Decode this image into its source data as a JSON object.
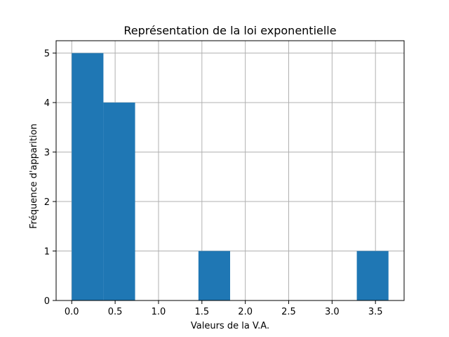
{
  "chart_data": {
    "type": "bar",
    "title": "Représentation de la loi exponentielle",
    "xlabel": "Valeurs de la V.A.",
    "ylabel": "Fréquence d'apparition",
    "xlim": [
      -0.18,
      3.83
    ],
    "ylim": [
      0,
      5.25
    ],
    "grid": true,
    "bar_color": "#1f77b4",
    "bins": [
      {
        "x0": 0.0,
        "x1": 0.365,
        "count": 5
      },
      {
        "x0": 0.365,
        "x1": 0.73,
        "count": 4
      },
      {
        "x0": 0.73,
        "x1": 1.095,
        "count": 0
      },
      {
        "x0": 1.095,
        "x1": 1.46,
        "count": 0
      },
      {
        "x0": 1.46,
        "x1": 1.825,
        "count": 1
      },
      {
        "x0": 1.825,
        "x1": 2.19,
        "count": 0
      },
      {
        "x0": 2.19,
        "x1": 2.555,
        "count": 0
      },
      {
        "x0": 2.555,
        "x1": 2.92,
        "count": 0
      },
      {
        "x0": 2.92,
        "x1": 3.285,
        "count": 0
      },
      {
        "x0": 3.285,
        "x1": 3.65,
        "count": 1
      }
    ],
    "xticks": [
      0.0,
      0.5,
      1.0,
      1.5,
      2.0,
      2.5,
      3.0,
      3.5
    ],
    "xtick_labels": [
      "0.0",
      "0.5",
      "1.0",
      "1.5",
      "2.0",
      "2.5",
      "3.0",
      "3.5"
    ],
    "yticks": [
      0,
      1,
      2,
      3,
      4,
      5
    ],
    "ytick_labels": [
      "0",
      "1",
      "2",
      "3",
      "4",
      "5"
    ]
  }
}
